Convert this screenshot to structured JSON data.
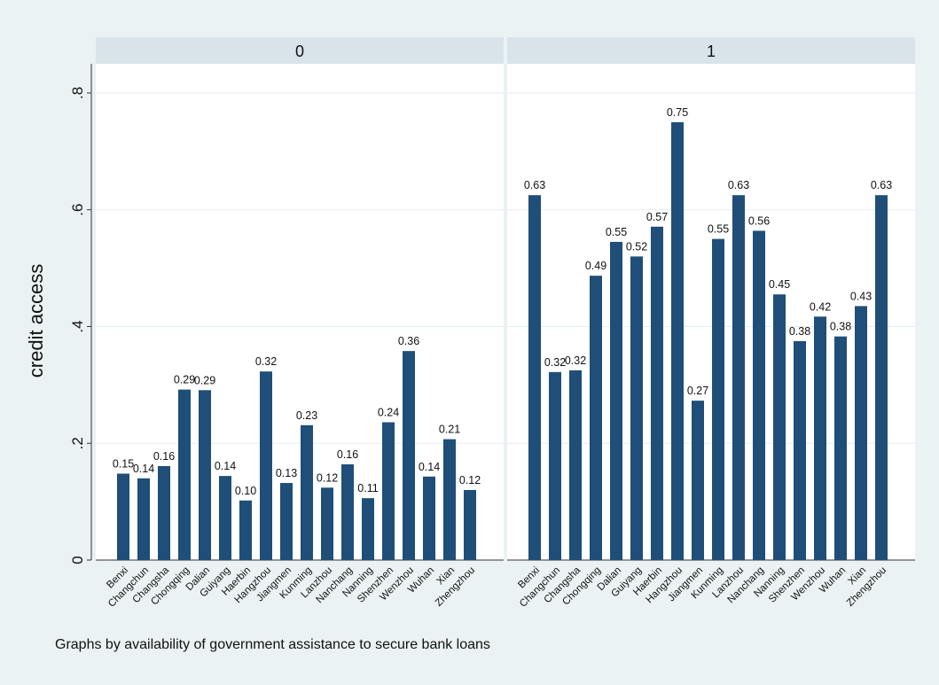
{
  "chart_data": {
    "type": "bar",
    "ylabel": "credit access",
    "ylim": [
      0,
      0.85
    ],
    "yticks": [
      0,
      0.2,
      0.4,
      0.6,
      0.8
    ],
    "ytick_labels": [
      "0",
      ".2",
      ".4",
      ".6",
      ".8"
    ],
    "grid": true,
    "bar_color": "#1f4e79",
    "note": "Graphs by availability of government assistance to secure bank loans",
    "panels": [
      {
        "title": "0",
        "categories": [
          "Benxi",
          "Changchun",
          "Changsha",
          "Chongqing",
          "Dalian",
          "Guiyang",
          "Haerbin",
          "Hangzhou",
          "Jiangmen",
          "Kunming",
          "Lanzhou",
          "Nanchang",
          "Nanning",
          "Shenzhen",
          "Wenzhou",
          "Wuhan",
          "Xian",
          "Zhengzhou"
        ],
        "values": [
          0.148,
          0.14,
          0.161,
          0.292,
          0.291,
          0.144,
          0.102,
          0.323,
          0.132,
          0.231,
          0.124,
          0.164,
          0.106,
          0.236,
          0.358,
          0.143,
          0.207,
          0.12
        ],
        "labels": [
          "0.15",
          "0.14",
          "0.16",
          "0.29",
          "0.29",
          "0.14",
          "0.10",
          "0.32",
          "0.13",
          "0.23",
          "0.12",
          "0.16",
          "0.11",
          "0.24",
          "0.36",
          "0.14",
          "0.21",
          "0.12"
        ]
      },
      {
        "title": "1",
        "categories": [
          "Benxi",
          "Changchun",
          "Changsha",
          "Chongqing",
          "Dalian",
          "Guiyang",
          "Haerbin",
          "Hangzhou",
          "Jiangmen",
          "Kunming",
          "Lanzhou",
          "Nanchang",
          "Nanning",
          "Shenzhen",
          "Wenzhou",
          "Wuhan",
          "Xian",
          "Zhengzhou"
        ],
        "values": [
          0.625,
          0.322,
          0.325,
          0.487,
          0.545,
          0.52,
          0.571,
          0.75,
          0.273,
          0.55,
          0.625,
          0.564,
          0.455,
          0.375,
          0.417,
          0.383,
          0.435,
          0.625
        ],
        "labels": [
          "0.63",
          "0.32",
          "0.32",
          "0.49",
          "0.55",
          "0.52",
          "0.57",
          "0.75",
          "0.27",
          "0.55",
          "0.63",
          "0.56",
          "0.45",
          "0.38",
          "0.42",
          "0.38",
          "0.43",
          "0.63"
        ]
      }
    ]
  }
}
